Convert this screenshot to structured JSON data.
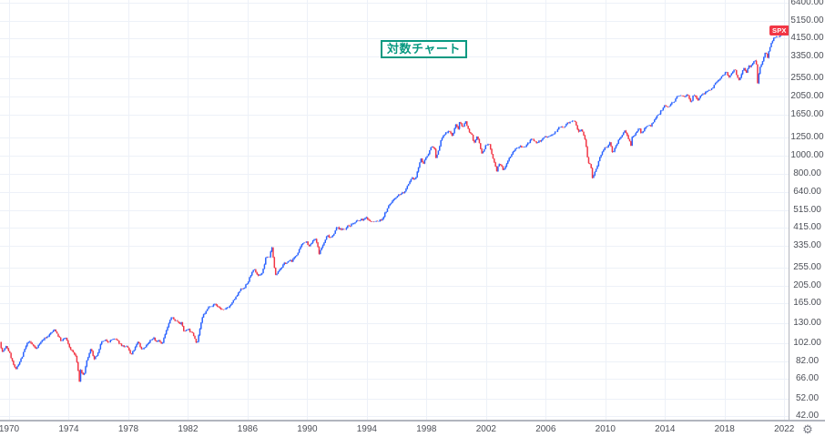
{
  "meta": {
    "symbol": "SPX",
    "scale": "logarithmic"
  },
  "colors": {
    "background": "#FFFFFF",
    "candle_up": "#2962FF",
    "candle_down": "#F23645",
    "grid": "#EDF1F8",
    "axis_separator": "#B2B5BE",
    "axis_text": "#4C4F57",
    "annotation_teal": "#089981",
    "badge_bg": "#F23645",
    "badge_text": "#FFFFFF",
    "gear_gray": "#787B86"
  },
  "badge": {
    "text": "SPX"
  },
  "annotation": {
    "text": "対数チャート"
  },
  "icons": {
    "gear": "⚙"
  },
  "price_axis": {
    "labels": [
      "6400.00",
      "5150.00",
      "4150.00",
      "3350.00",
      "2550.00",
      "2050.00",
      "1650.00",
      "1250.00",
      "1000.00",
      "800.00",
      "640.00",
      "515.00",
      "415.00",
      "335.00",
      "255.00",
      "205.00",
      "165.00",
      "130.00",
      "102.00",
      "82.00",
      "66.00",
      "52.00",
      "42.00"
    ]
  },
  "time_axis": {
    "labels": [
      "1970",
      "1974",
      "1978",
      "1982",
      "1986",
      "1990",
      "1994",
      "1998",
      "2002",
      "2006",
      "2010",
      "2014",
      "2018",
      "2022"
    ]
  },
  "chart_data": {
    "type": "candlestick",
    "symbol": "SPX",
    "timeframe": "monthly",
    "y_scale": "log",
    "x_range": [
      1969.4,
      2022.2
    ],
    "y_range": [
      42,
      6400
    ],
    "grid": true,
    "y_ticks": [
      6400,
      5150,
      4150,
      3350,
      2550,
      2050,
      1650,
      1250,
      1000,
      800,
      640,
      515,
      415,
      335,
      255,
      205,
      165,
      130,
      102,
      82,
      66,
      52,
      42
    ],
    "x_ticks": [
      1970,
      1974,
      1978,
      1982,
      1986,
      1990,
      1994,
      1998,
      2002,
      2006,
      2010,
      2014,
      2018,
      2022
    ],
    "annotation": "対数チャート",
    "last_price_marker": "SPX",
    "series": [
      {
        "name": "SPX",
        "points": [
          [
            1969.38,
            103.5
          ],
          [
            1969.55,
            91.8
          ],
          [
            1969.8,
            97.1
          ],
          [
            1970.0,
            92.1
          ],
          [
            1970.33,
            76.6
          ],
          [
            1970.45,
            72.3
          ],
          [
            1970.58,
            78.1
          ],
          [
            1970.9,
            87.2
          ],
          [
            1971.0,
            92.2
          ],
          [
            1971.3,
            103.9
          ],
          [
            1971.6,
            99.0
          ],
          [
            1971.85,
            94.0
          ],
          [
            1972.0,
            102.1
          ],
          [
            1972.9,
            116.6
          ],
          [
            1973.0,
            118.1
          ],
          [
            1973.08,
            120.2
          ],
          [
            1973.3,
            111.5
          ],
          [
            1973.5,
            104.3
          ],
          [
            1973.8,
            108.3
          ],
          [
            1974.0,
            97.6
          ],
          [
            1974.2,
            93.0
          ],
          [
            1974.5,
            86.0
          ],
          [
            1974.72,
            63.5
          ],
          [
            1974.8,
            73.9
          ],
          [
            1974.92,
            70.0
          ],
          [
            1975.0,
            68.6
          ],
          [
            1975.25,
            83.4
          ],
          [
            1975.5,
            95.2
          ],
          [
            1975.72,
            83.9
          ],
          [
            1976.0,
            90.2
          ],
          [
            1976.2,
            102.8
          ],
          [
            1976.75,
            105.2
          ],
          [
            1977.0,
            107.5
          ],
          [
            1977.5,
            100.2
          ],
          [
            1978.0,
            95.1
          ],
          [
            1978.17,
            87.0
          ],
          [
            1978.67,
            103.3
          ],
          [
            1978.88,
            94.7
          ],
          [
            1979.0,
            96.1
          ],
          [
            1979.72,
            109.3
          ],
          [
            1979.85,
            102.0
          ],
          [
            1980.0,
            107.9
          ],
          [
            1980.25,
            102.1
          ],
          [
            1980.9,
            140.5
          ],
          [
            1981.0,
            135.8
          ],
          [
            1981.55,
            130.9
          ],
          [
            1981.75,
            116.2
          ],
          [
            1982.0,
            122.6
          ],
          [
            1982.45,
            109.6
          ],
          [
            1982.6,
            102.4
          ],
          [
            1982.78,
            120.4
          ],
          [
            1983.0,
            140.6
          ],
          [
            1983.5,
            162.4
          ],
          [
            1983.82,
            163.6
          ],
          [
            1984.1,
            157.1
          ],
          [
            1984.45,
            150.6
          ],
          [
            1985.0,
            167.2
          ],
          [
            1985.5,
            191.9
          ],
          [
            1986.0,
            211.3
          ],
          [
            1986.25,
            238.9
          ],
          [
            1986.45,
            245.0
          ],
          [
            1986.75,
            231.3
          ],
          [
            1987.0,
            242.2
          ],
          [
            1987.25,
            291.7
          ],
          [
            1987.45,
            289.3
          ],
          [
            1987.63,
            329.8
          ],
          [
            1987.8,
            251.8
          ],
          [
            1987.9,
            230.3
          ],
          [
            1988.0,
            247.1
          ],
          [
            1988.35,
            262.0
          ],
          [
            1988.6,
            271.9
          ],
          [
            1989.0,
            277.7
          ],
          [
            1989.5,
            318.0
          ],
          [
            1989.78,
            349.2
          ],
          [
            1990.0,
            353.4
          ],
          [
            1990.1,
            329.1
          ],
          [
            1990.47,
            358.0
          ],
          [
            1990.58,
            356.2
          ],
          [
            1990.8,
            304.0
          ],
          [
            1991.0,
            330.2
          ],
          [
            1991.12,
            343.9
          ],
          [
            1991.32,
            375.3
          ],
          [
            1991.6,
            371.2
          ],
          [
            1992.0,
            417.1
          ],
          [
            1992.28,
            403.7
          ],
          [
            1992.55,
            414.0
          ],
          [
            1993.0,
            435.7
          ],
          [
            1993.5,
            450.5
          ],
          [
            1994.0,
            466.5
          ],
          [
            1994.28,
            445.8
          ],
          [
            1994.5,
            444.3
          ],
          [
            1994.92,
            453.7
          ],
          [
            1995.0,
            459.3
          ],
          [
            1995.5,
            544.8
          ],
          [
            1996.0,
            615.9
          ],
          [
            1996.5,
            639.9
          ],
          [
            1996.6,
            651.0
          ],
          [
            1997.0,
            740.7
          ],
          [
            1997.28,
            757.1
          ],
          [
            1997.6,
            954.3
          ],
          [
            1997.78,
            914.6
          ],
          [
            1998.0,
            970.4
          ],
          [
            1998.3,
            1111.8
          ],
          [
            1998.52,
            1120.7
          ],
          [
            1998.63,
            957.3
          ],
          [
            1998.75,
            1017.0
          ],
          [
            1999.0,
            1229.2
          ],
          [
            1999.5,
            1372.7
          ],
          [
            1999.73,
            1282.7
          ],
          [
            2000.0,
            1469.3
          ],
          [
            2000.13,
            1366.4
          ],
          [
            2000.22,
            1498.6
          ],
          [
            2000.42,
            1420.6
          ],
          [
            2000.63,
            1517.7
          ],
          [
            2000.9,
            1315.0
          ],
          [
            2001.0,
            1320.3
          ],
          [
            2001.2,
            1160.3
          ],
          [
            2001.4,
            1255.8
          ],
          [
            2001.72,
            1040.9
          ],
          [
            2002.0,
            1148.1
          ],
          [
            2002.2,
            1147.4
          ],
          [
            2002.55,
            911.6
          ],
          [
            2002.72,
            815.3
          ],
          [
            2002.82,
            885.8
          ],
          [
            2003.0,
            879.8
          ],
          [
            2003.15,
            841.2
          ],
          [
            2003.5,
            974.5
          ],
          [
            2004.0,
            1111.9
          ],
          [
            2004.6,
            1101.7
          ],
          [
            2005.0,
            1211.9
          ],
          [
            2005.3,
            1156.9
          ],
          [
            2006.0,
            1248.3
          ],
          [
            2006.4,
            1270.1
          ],
          [
            2007.0,
            1418.3
          ],
          [
            2007.15,
            1406.8
          ],
          [
            2007.78,
            1549.4
          ],
          [
            2008.0,
            1468.4
          ],
          [
            2008.1,
            1378.6
          ],
          [
            2008.22,
            1322.7
          ],
          [
            2008.4,
            1400.4
          ],
          [
            2008.68,
            1166.4
          ],
          [
            2008.8,
            968.8
          ],
          [
            2008.9,
            896.2
          ],
          [
            2009.0,
            903.3
          ],
          [
            2009.08,
            825.9
          ],
          [
            2009.15,
            735.1
          ],
          [
            2009.22,
            797.9
          ],
          [
            2009.5,
            919.3
          ],
          [
            2010.0,
            1115.1
          ],
          [
            2010.08,
            1073.9
          ],
          [
            2010.3,
            1186.7
          ],
          [
            2010.5,
            1030.7
          ],
          [
            2011.0,
            1257.6
          ],
          [
            2011.32,
            1363.6
          ],
          [
            2011.6,
            1218.9
          ],
          [
            2011.72,
            1131.4
          ],
          [
            2011.8,
            1253.3
          ],
          [
            2012.0,
            1257.6
          ],
          [
            2012.25,
            1408.5
          ],
          [
            2012.42,
            1310.3
          ],
          [
            2012.72,
            1440.7
          ],
          [
            2013.0,
            1426.2
          ],
          [
            2013.5,
            1606.3
          ],
          [
            2014.0,
            1848.4
          ],
          [
            2014.1,
            1782.6
          ],
          [
            2014.78,
            2018.1
          ],
          [
            2015.0,
            2058.9
          ],
          [
            2015.55,
            2103.8
          ],
          [
            2015.67,
            1972.2
          ],
          [
            2015.75,
            1920.0
          ],
          [
            2015.88,
            2080.4
          ],
          [
            2016.0,
            2043.9
          ],
          [
            2016.15,
            1932.2
          ],
          [
            2016.5,
            2098.9
          ],
          [
            2017.0,
            2238.8
          ],
          [
            2017.5,
            2423.4
          ],
          [
            2018.0,
            2673.6
          ],
          [
            2018.08,
            2823.8
          ],
          [
            2018.18,
            2713.8
          ],
          [
            2018.28,
            2640.9
          ],
          [
            2018.7,
            2914.0
          ],
          [
            2018.8,
            2711.7
          ],
          [
            2018.95,
            2506.9
          ],
          [
            2019.1,
            2704.1
          ],
          [
            2019.33,
            2945.8
          ],
          [
            2019.45,
            2752.1
          ],
          [
            2019.6,
            2980.4
          ],
          [
            2019.68,
            2926.5
          ],
          [
            2020.0,
            3230.8
          ],
          [
            2020.1,
            3225.5
          ],
          [
            2020.17,
            2954.2
          ],
          [
            2020.23,
            2237.4
          ],
          [
            2020.32,
            2912.4
          ],
          [
            2020.6,
            3271.1
          ],
          [
            2020.75,
            3500.3
          ],
          [
            2020.83,
            3363.0
          ],
          [
            2020.87,
            3270.0
          ],
          [
            2021.0,
            3756.1
          ],
          [
            2021.3,
            4181.2
          ],
          [
            2021.55,
            4297.5
          ],
          [
            2021.75,
            4307.5
          ],
          [
            2021.85,
            4605.4
          ],
          [
            2022.0,
            4766.2
          ],
          [
            2022.1,
            4515.6
          ],
          [
            2022.17,
            4374.0
          ]
        ]
      }
    ]
  }
}
